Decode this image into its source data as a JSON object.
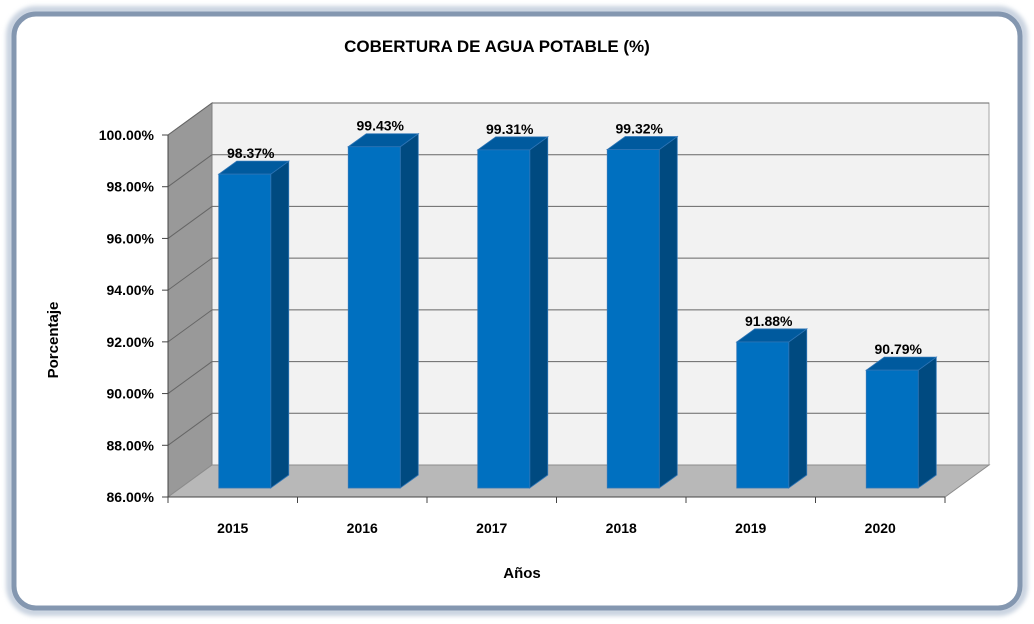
{
  "chart_data": {
    "type": "bar",
    "title": "COBERTURA DE AGUA POTABLE (%)",
    "xlabel": "Años",
    "ylabel": "Porcentaje",
    "categories": [
      "2015",
      "2016",
      "2017",
      "2018",
      "2019",
      "2020"
    ],
    "values": [
      98.37,
      99.43,
      99.31,
      99.32,
      91.88,
      90.79
    ],
    "data_labels": [
      "98.37%",
      "99.43%",
      "99.31%",
      "99.32%",
      "91.88%",
      "90.79%"
    ],
    "ylim": [
      86,
      100
    ],
    "yticks": [
      86,
      88,
      90,
      92,
      94,
      96,
      98,
      100
    ],
    "ytick_labels": [
      "86.00%",
      "88.00%",
      "90.00%",
      "92.00%",
      "94.00%",
      "96.00%",
      "98.00%",
      "100.00%"
    ],
    "grid": true,
    "legend": "none",
    "three_d": true,
    "colors": {
      "bar_front": "#0070C0",
      "bar_side": "#004A80",
      "bar_top": "#005A9E",
      "wall": "#F2F2F2",
      "side_wall": "#999999",
      "floor": "#B8B8B8",
      "frame_border": "#8497B0"
    }
  }
}
